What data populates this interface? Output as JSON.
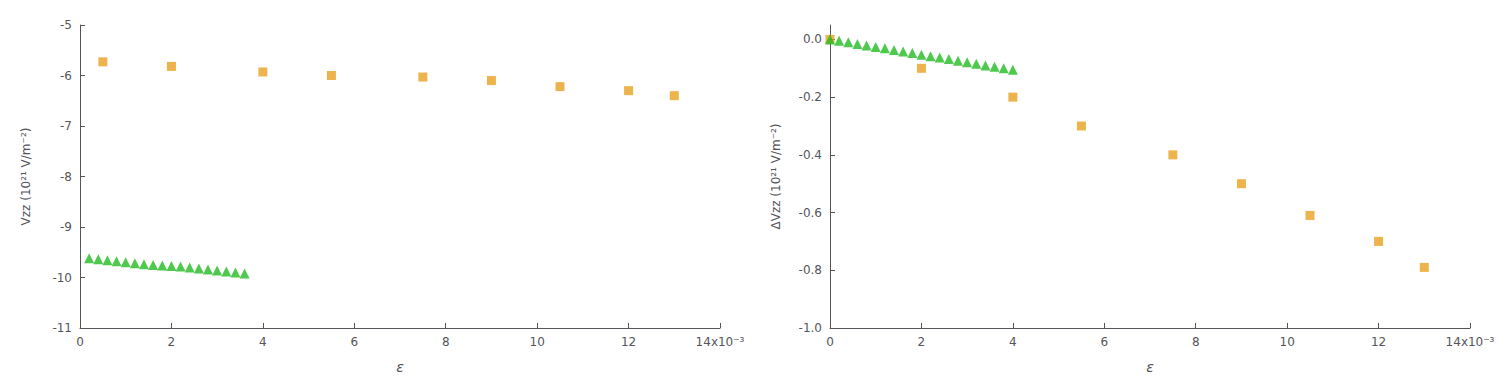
{
  "chart_data": [
    {
      "type": "scatter",
      "xlabel": "ε",
      "ylabel": "Vzz (10²¹ V/m⁻²)",
      "xlim": [
        0,
        0.014
      ],
      "ylim": [
        -11,
        -5
      ],
      "xticks": [
        0,
        {
          "value": 0.002,
          "label": "2"
        },
        {
          "value": 0.004,
          "label": "4"
        },
        {
          "value": 0.006,
          "label": "6"
        },
        {
          "value": 0.008,
          "label": "8"
        },
        {
          "value": 0.01,
          "label": "10"
        },
        {
          "value": 0.012,
          "label": "12"
        },
        {
          "value": 0.014,
          "label": "14x10⁻³"
        }
      ],
      "yticks": [
        -11,
        -10,
        -9,
        -8,
        -7,
        -6,
        -5
      ],
      "grid": false,
      "series": [
        {
          "color": "#E8A020",
          "marker": "square",
          "x": [
            0.0005,
            0.002,
            0.004,
            0.0055,
            0.0075,
            0.009,
            0.0105,
            0.012,
            0.013
          ],
          "values": [
            -5.73,
            -5.82,
            -5.93,
            -6.0,
            -6.03,
            -6.1,
            -6.22,
            -6.3,
            -6.4
          ]
        },
        {
          "color": "#22BB22",
          "marker": "triangle",
          "x": [
            0.0002,
            0.0004,
            0.0006,
            0.0008,
            0.001,
            0.0012,
            0.0014,
            0.0016,
            0.0018,
            0.002,
            0.0022,
            0.0024,
            0.0026,
            0.0028,
            0.003,
            0.0032,
            0.0034,
            0.0036
          ],
          "values": [
            -9.62,
            -9.64,
            -9.66,
            -9.68,
            -9.7,
            -9.72,
            -9.74,
            -9.75,
            -9.76,
            -9.77,
            -9.78,
            -9.8,
            -9.82,
            -9.84,
            -9.86,
            -9.88,
            -9.9,
            -9.92
          ]
        }
      ]
    },
    {
      "type": "scatter",
      "xlabel": "ε",
      "ylabel": "ΔVzz (10²¹ V/m⁻²)",
      "xlim": [
        0,
        0.014
      ],
      "ylim": [
        -1.0,
        0.05
      ],
      "xticks": [
        0,
        {
          "value": 0.002,
          "label": "2"
        },
        {
          "value": 0.004,
          "label": "4"
        },
        {
          "value": 0.006,
          "label": "6"
        },
        {
          "value": 0.008,
          "label": "8"
        },
        {
          "value": 0.01,
          "label": "10"
        },
        {
          "value": 0.012,
          "label": "12"
        },
        {
          "value": 0.014,
          "label": "14x10⁻³"
        }
      ],
      "yticks": [
        {
          "value": -1.0,
          "label": "-1.0"
        },
        -0.8,
        -0.6,
        -0.4,
        -0.2,
        {
          "value": 0.0,
          "label": "0.0"
        }
      ],
      "grid": false,
      "series": [
        {
          "color": "#E8A020",
          "marker": "square",
          "x": [
            0.0,
            0.002,
            0.004,
            0.0055,
            0.0075,
            0.009,
            0.0105,
            0.012,
            0.013
          ],
          "values": [
            0.0,
            -0.1,
            -0.2,
            -0.3,
            -0.4,
            -0.5,
            -0.61,
            -0.7,
            -0.79
          ]
        },
        {
          "color": "#22BB22",
          "marker": "triangle",
          "x": [
            0.0,
            0.0002,
            0.0004,
            0.0006,
            0.0008,
            0.001,
            0.0012,
            0.0014,
            0.0016,
            0.0018,
            0.002,
            0.0022,
            0.0024,
            0.0026,
            0.0028,
            0.003,
            0.0032,
            0.0034,
            0.0036,
            0.0038,
            0.004
          ],
          "values": [
            0.0,
            -0.005,
            -0.01,
            -0.016,
            -0.021,
            -0.026,
            -0.031,
            -0.037,
            -0.042,
            -0.047,
            -0.053,
            -0.058,
            -0.063,
            -0.068,
            -0.074,
            -0.079,
            -0.084,
            -0.09,
            -0.095,
            -0.1,
            -0.105
          ]
        }
      ]
    }
  ]
}
